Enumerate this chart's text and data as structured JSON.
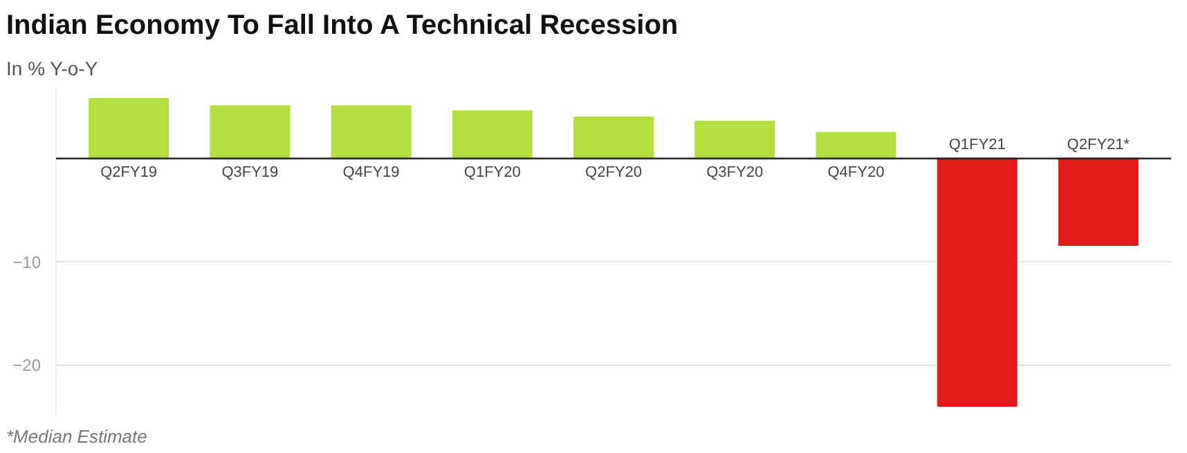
{
  "chart_data": {
    "type": "bar",
    "title": "Indian Economy To Fall Into A Technical Recession",
    "subtitle": "In % Y-o-Y",
    "categories": [
      "Q2FY19",
      "Q3FY19",
      "Q4FY19",
      "Q1FY20",
      "Q2FY20",
      "Q3FY20",
      "Q4FY20",
      "Q1FY21",
      "Q2FY21*"
    ],
    "values": [
      5.8,
      5.1,
      5.1,
      4.6,
      4.0,
      3.6,
      2.5,
      -24.0,
      -8.4
    ],
    "colors": [
      "#b3dd40",
      "#b3dd40",
      "#b3dd40",
      "#b3dd40",
      "#b3dd40",
      "#b3dd40",
      "#b3dd40",
      "#e21b1b",
      "#e21b1b"
    ],
    "ylim": [
      -25,
      7
    ],
    "yticks": [
      -10,
      -20
    ],
    "grid": "y",
    "annotations": [
      "*Median Estimate"
    ]
  }
}
